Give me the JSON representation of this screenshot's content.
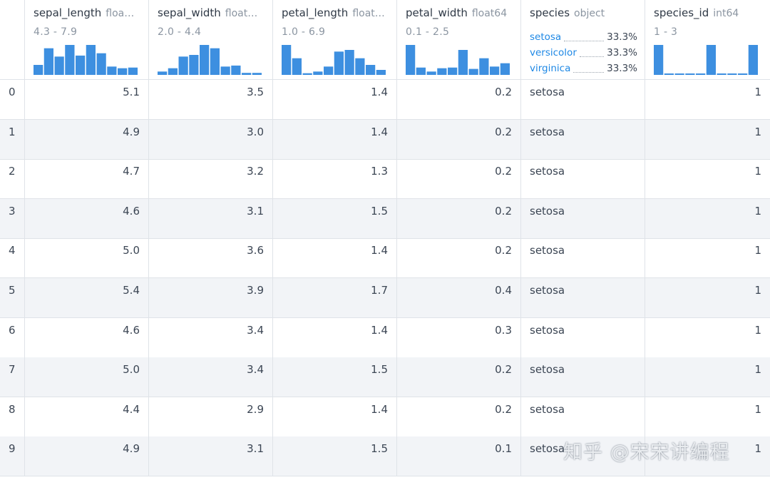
{
  "columns": [
    {
      "name": "sepal_length",
      "dtype": "floa…",
      "range": "4.3 - 7.9",
      "histogram": [
        3,
        8,
        5.5,
        9,
        5.8,
        9,
        6.5,
        2.5,
        2,
        2.2
      ]
    },
    {
      "name": "sepal_width",
      "dtype": "float…",
      "range": "2.0 - 4.4",
      "histogram": [
        1,
        2,
        5.5,
        6,
        9,
        8,
        2.5,
        2.8,
        0.6,
        0.6
      ]
    },
    {
      "name": "petal_length",
      "dtype": "float…",
      "range": "1.0 - 6.9",
      "histogram": [
        9,
        5,
        0.5,
        1,
        2.5,
        7,
        7.5,
        5,
        3,
        1.5
      ]
    },
    {
      "name": "petal_width",
      "dtype": "float64",
      "range": "0.1 - 2.5",
      "histogram": [
        9,
        2.2,
        1,
        2,
        2.2,
        7.5,
        1.8,
        5,
        2.5,
        3.5
      ]
    },
    {
      "name": "species",
      "dtype": "object",
      "categories": [
        {
          "label": "setosa",
          "pct": "33.3%"
        },
        {
          "label": "versicolor",
          "pct": "33.3%"
        },
        {
          "label": "virginica",
          "pct": "33.3%"
        }
      ]
    },
    {
      "name": "species_id",
      "dtype": "int64",
      "range": "1 - 3",
      "histogram": [
        9,
        0.3,
        0.3,
        0.3,
        0.3,
        9,
        0.3,
        0.3,
        0.3,
        9
      ]
    }
  ],
  "rows": [
    {
      "index": "0",
      "sepal_length": "5.1",
      "sepal_width": "3.5",
      "petal_length": "1.4",
      "petal_width": "0.2",
      "species": "setosa",
      "species_id": "1"
    },
    {
      "index": "1",
      "sepal_length": "4.9",
      "sepal_width": "3.0",
      "petal_length": "1.4",
      "petal_width": "0.2",
      "species": "setosa",
      "species_id": "1"
    },
    {
      "index": "2",
      "sepal_length": "4.7",
      "sepal_width": "3.2",
      "petal_length": "1.3",
      "petal_width": "0.2",
      "species": "setosa",
      "species_id": "1"
    },
    {
      "index": "3",
      "sepal_length": "4.6",
      "sepal_width": "3.1",
      "petal_length": "1.5",
      "petal_width": "0.2",
      "species": "setosa",
      "species_id": "1"
    },
    {
      "index": "4",
      "sepal_length": "5.0",
      "sepal_width": "3.6",
      "petal_length": "1.4",
      "petal_width": "0.2",
      "species": "setosa",
      "species_id": "1"
    },
    {
      "index": "5",
      "sepal_length": "5.4",
      "sepal_width": "3.9",
      "petal_length": "1.7",
      "petal_width": "0.4",
      "species": "setosa",
      "species_id": "1"
    },
    {
      "index": "6",
      "sepal_length": "4.6",
      "sepal_width": "3.4",
      "petal_length": "1.4",
      "petal_width": "0.3",
      "species": "setosa",
      "species_id": "1"
    },
    {
      "index": "7",
      "sepal_length": "5.0",
      "sepal_width": "3.4",
      "petal_length": "1.5",
      "petal_width": "0.2",
      "species": "setosa",
      "species_id": "1"
    },
    {
      "index": "8",
      "sepal_length": "4.4",
      "sepal_width": "2.9",
      "petal_length": "1.4",
      "petal_width": "0.2",
      "species": "setosa",
      "species_id": "1"
    },
    {
      "index": "9",
      "sepal_length": "4.9",
      "sepal_width": "3.1",
      "petal_length": "1.5",
      "petal_width": "0.1",
      "species": "setosa",
      "species_id": "1"
    }
  ],
  "watermark": "知乎 @宋宋讲编程",
  "colors": {
    "bar": "#3d8fe0",
    "category_link": "#1e88e5",
    "grid_line": "#dfe3e8",
    "alt_row": "#f2f4f7"
  }
}
